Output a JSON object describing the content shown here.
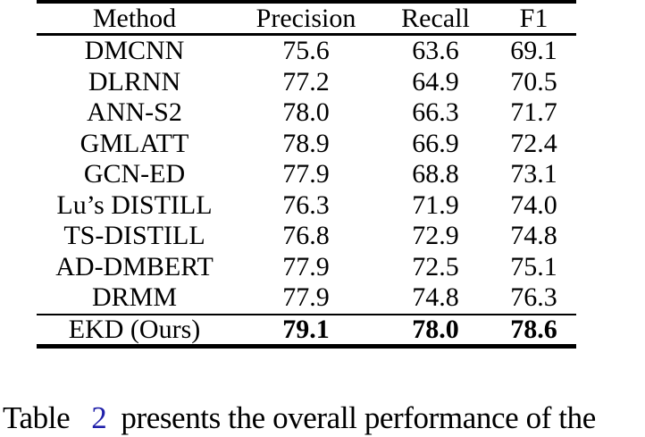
{
  "table": {
    "columns": [
      "Method",
      "Precision",
      "Recall",
      "F1"
    ],
    "rows": [
      [
        "DMCNN",
        "75.6",
        "63.6",
        "69.1"
      ],
      [
        "DLRNN",
        "77.2",
        "64.9",
        "70.5"
      ],
      [
        "ANN-S2",
        "78.0",
        "66.3",
        "71.7"
      ],
      [
        "GMLATT",
        "78.9",
        "66.9",
        "72.4"
      ],
      [
        "GCN-ED",
        "77.9",
        "68.8",
        "73.1"
      ],
      [
        "Lu’s DISTILL",
        "76.3",
        "71.9",
        "74.0"
      ],
      [
        "TS-DISTILL",
        "76.8",
        "72.9",
        "74.8"
      ],
      [
        "AD-DMBERT",
        "77.9",
        "72.5",
        "75.1"
      ],
      [
        "DRMM",
        "77.9",
        "74.8",
        "76.3"
      ]
    ],
    "ours_row": [
      "EKD (Ours)",
      "79.1",
      "78.0",
      "78.6"
    ]
  },
  "body_text": {
    "prefix": "Table",
    "ref": "2",
    "suffix": "presents the overall performance of the"
  },
  "colors": {
    "text": "#000000",
    "link": "#2121aa",
    "rule": "#000000",
    "background": "#ffffff"
  }
}
